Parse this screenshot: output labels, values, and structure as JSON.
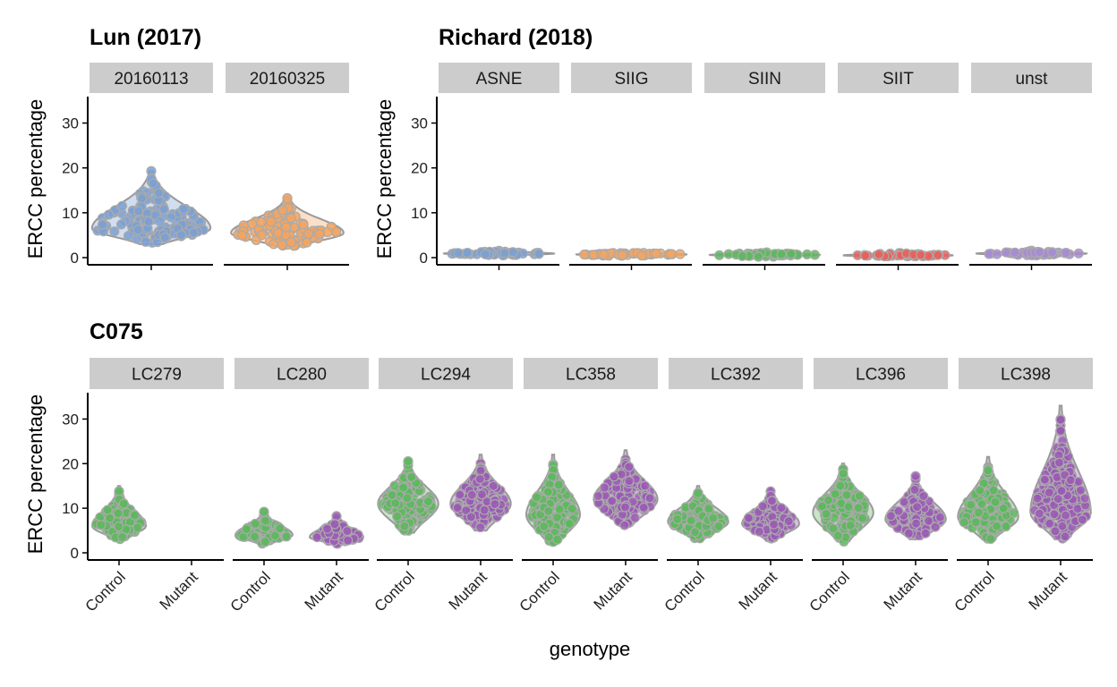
{
  "colors": {
    "strip_fill": "#cccccc",
    "violin_stroke": "#999999",
    "point_stroke": "#aaaaaa",
    "blue": "#7aa0d4",
    "orange": "#f4a460",
    "green": "#5cb85c",
    "red": "#e8605a",
    "purple": "#9b59b6",
    "lavender": "#a78bd4"
  },
  "chart_data": [
    {
      "type": "violin",
      "title": "Lun (2017)",
      "ylabel": "ERCC percentage",
      "ylim": [
        0,
        35
      ],
      "yticks": [
        0,
        10,
        20,
        30
      ],
      "panels": [
        {
          "label": "20160113",
          "groups": [
            {
              "category": "",
              "color": "#7aa0d4",
              "min": 3,
              "max": 19.3,
              "median": 6.5,
              "width": 1.0
            }
          ]
        },
        {
          "label": "20160325",
          "groups": [
            {
              "category": "",
              "color": "#f4a460",
              "min": 2.5,
              "max": 13.5,
              "median": 5.5,
              "width": 0.95
            }
          ]
        }
      ]
    },
    {
      "type": "violin",
      "title": "Richard (2018)",
      "ylabel": "ERCC percentage",
      "ylim": [
        0,
        35
      ],
      "yticks": [
        0,
        10,
        20,
        30
      ],
      "panels": [
        {
          "label": "ASNE",
          "groups": [
            {
              "category": "",
              "color": "#7aa0d4",
              "min": 0.5,
              "max": 1.6,
              "median": 0.9,
              "width": 0.95
            }
          ]
        },
        {
          "label": "SIIG",
          "groups": [
            {
              "category": "",
              "color": "#f4a460",
              "min": 0.3,
              "max": 1.4,
              "median": 0.7,
              "width": 0.95
            }
          ]
        },
        {
          "label": "SIIN",
          "groups": [
            {
              "category": "",
              "color": "#5cb85c",
              "min": 0.2,
              "max": 1.3,
              "median": 0.6,
              "width": 0.95
            }
          ]
        },
        {
          "label": "SIIT",
          "groups": [
            {
              "category": "",
              "color": "#e8605a",
              "min": 0.2,
              "max": 1.2,
              "median": 0.5,
              "width": 0.95
            }
          ]
        },
        {
          "label": "unst",
          "groups": [
            {
              "category": "",
              "color": "#a78bd4",
              "min": 0.5,
              "max": 1.6,
              "median": 0.9,
              "width": 0.95
            }
          ]
        }
      ]
    },
    {
      "type": "violin",
      "title": "C075",
      "xlabel": "genotype",
      "ylabel": "ERCC percentage",
      "ylim": [
        0,
        35
      ],
      "yticks": [
        0,
        10,
        20,
        30
      ],
      "categories": [
        "Control",
        "Mutant"
      ],
      "panels": [
        {
          "label": "LC279",
          "groups": [
            {
              "category": "Control",
              "color": "#5cb85c",
              "min": 3,
              "max": 15,
              "median": 6,
              "width": 0.8
            }
          ]
        },
        {
          "label": "LC280",
          "groups": [
            {
              "category": "Control",
              "color": "#5cb85c",
              "min": 2,
              "max": 9.5,
              "median": 4,
              "width": 0.85
            },
            {
              "category": "Mutant",
              "color": "#9b59b6",
              "min": 2,
              "max": 8.5,
              "median": 3.5,
              "width": 0.8
            }
          ]
        },
        {
          "label": "LC294",
          "groups": [
            {
              "category": "Control",
              "color": "#5cb85c",
              "min": 4.5,
              "max": 21,
              "median": 11,
              "width": 0.9
            },
            {
              "category": "Mutant",
              "color": "#9b59b6",
              "min": 5,
              "max": 22,
              "median": 11,
              "width": 0.9
            }
          ]
        },
        {
          "label": "LC358",
          "groups": [
            {
              "category": "Control",
              "color": "#5cb85c",
              "min": 2,
              "max": 22,
              "median": 8.5,
              "width": 0.8
            },
            {
              "category": "Mutant",
              "color": "#9b59b6",
              "min": 6,
              "max": 23,
              "median": 12,
              "width": 0.95
            }
          ]
        },
        {
          "label": "LC392",
          "groups": [
            {
              "category": "Control",
              "color": "#5cb85c",
              "min": 3,
              "max": 15,
              "median": 7,
              "width": 0.9
            },
            {
              "category": "Mutant",
              "color": "#9b59b6",
              "min": 3,
              "max": 14.5,
              "median": 6.5,
              "width": 0.85
            }
          ]
        },
        {
          "label": "LC396",
          "groups": [
            {
              "category": "Control",
              "color": "#5cb85c",
              "min": 2.5,
              "max": 20,
              "median": 9,
              "width": 0.9
            },
            {
              "category": "Mutant",
              "color": "#9b59b6",
              "min": 3,
              "max": 17.5,
              "median": 7.5,
              "width": 0.9
            }
          ]
        },
        {
          "label": "LC398",
          "groups": [
            {
              "category": "Control",
              "color": "#5cb85c",
              "min": 3,
              "max": 21.5,
              "median": 8,
              "width": 0.9
            },
            {
              "category": "Mutant",
              "color": "#9b59b6",
              "min": 3,
              "max": 33,
              "median": 9,
              "width": 0.9
            }
          ]
        }
      ]
    }
  ]
}
